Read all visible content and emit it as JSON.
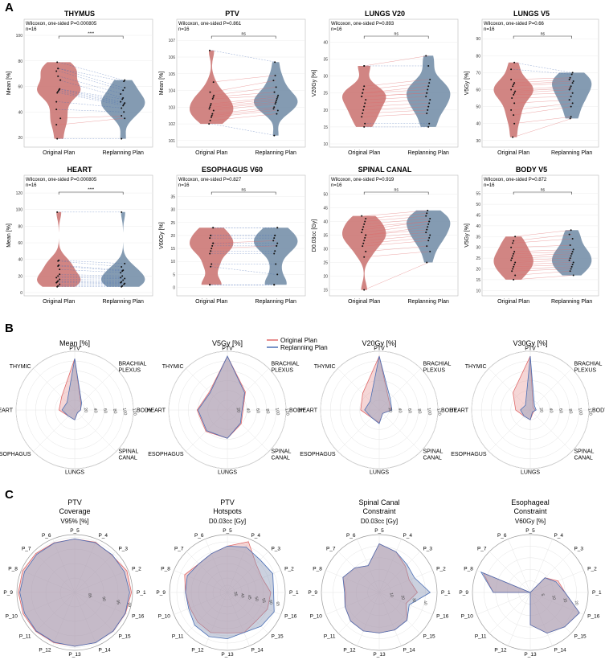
{
  "colors": {
    "original": "#c9706d",
    "replanning": "#6f8aa5",
    "orig_line": "#e06a6a",
    "rep_line": "#4a6fb5"
  },
  "panel_letters": [
    "A",
    "B",
    "C"
  ],
  "section_a": {
    "x_categories": [
      "Original Plan",
      "Replanning Plan"
    ],
    "panels": [
      {
        "title": "THYMUS",
        "stat": "Wilcoxon, one-sided P=0.000805",
        "n": "n=16",
        "sig": "****",
        "ylabel": "Mean [%]",
        "yticks": [
          "100",
          "80",
          "60",
          "40",
          "20"
        ]
      },
      {
        "title": "PTV",
        "stat": "Wilcoxon, one-sided P=0.861",
        "n": "n=16",
        "sig": "ns",
        "ylabel": "Mean [%]",
        "yticks": [
          "107",
          "106",
          "105",
          "104",
          "103",
          "102",
          "101"
        ]
      },
      {
        "title": "LUNGS V20",
        "stat": "Wilcoxon, one-sided P=0.893",
        "n": "n=16",
        "sig": "ns",
        "ylabel": "V20Gy [%]",
        "yticks": [
          "40",
          "35",
          "30",
          "25",
          "20",
          "15",
          "10"
        ]
      },
      {
        "title": "LUNGS V5",
        "stat": "Wilcoxon, one-sided P=0.66",
        "n": "n=16",
        "sig": "ns",
        "ylabel": "V5Gy [%]",
        "yticks": [
          "90",
          "80",
          "70",
          "60",
          "50",
          "40",
          "30"
        ]
      },
      {
        "title": "HEART",
        "stat": "Wilcoxon, one-sided P=0.000805",
        "n": "n=16",
        "sig": "****",
        "ylabel": "Mean [%]",
        "yticks": [
          "120",
          "100",
          "80",
          "60",
          "40",
          "20",
          "0"
        ]
      },
      {
        "title": "ESOPHAGUS V60",
        "stat": "Wilcoxon, one-sided P=0.827",
        "n": "n=16",
        "sig": "ns",
        "ylabel": "V60Gy [%]",
        "yticks": [
          "35",
          "30",
          "25",
          "20",
          "15",
          "10",
          "5",
          "0"
        ]
      },
      {
        "title": "SPINAL CANAL",
        "stat": "Wilcoxon, one-sided P=0.919",
        "n": "n=16",
        "sig": "ns",
        "ylabel": "D0.03cc [Gy]",
        "yticks": [
          "50",
          "45",
          "40",
          "35",
          "30",
          "25",
          "20",
          "15"
        ]
      },
      {
        "title": "BODY V5",
        "stat": "Wilcoxon, one-sided P=0.872",
        "n": "n=16",
        "sig": "ns",
        "ylabel": "V5Gy [%]",
        "yticks": [
          "55",
          "50",
          "45",
          "40",
          "35",
          "30",
          "25",
          "20",
          "15",
          "10"
        ]
      }
    ]
  },
  "section_b": {
    "legend": [
      "Original Plan",
      "Replanning Plan"
    ],
    "axes": [
      "PTV",
      "BRACHIAL PLEXUS",
      "BODY",
      "SPINAL CANAL",
      "LUNGS",
      "ESOPHAGUS",
      "HEART",
      "THYMIC"
    ],
    "ring_labels": [
      "20",
      "40",
      "60",
      "80",
      "100",
      "120"
    ],
    "ring_max": 120,
    "charts": [
      {
        "title": "Mean [%]",
        "original": [
          105,
          18,
          12,
          8,
          20,
          18,
          32,
          38
        ],
        "replanning": [
          105,
          20,
          12,
          8,
          20,
          18,
          26,
          22
        ]
      },
      {
        "title": "V5Gy [%]",
        "original": [
          110,
          52,
          32,
          40,
          58,
          62,
          62,
          52
        ],
        "replanning": [
          110,
          50,
          30,
          38,
          58,
          60,
          60,
          50
        ]
      },
      {
        "title": "V20Gy [%]",
        "original": [
          110,
          28,
          24,
          10,
          26,
          22,
          38,
          48
        ],
        "replanning": [
          110,
          32,
          26,
          10,
          28,
          22,
          30,
          26
        ]
      },
      {
        "title": "V30Gy [%]",
        "original": [
          110,
          8,
          10,
          8,
          20,
          18,
          30,
          50
        ],
        "replanning": [
          110,
          12,
          12,
          6,
          20,
          18,
          20,
          14
        ]
      }
    ]
  },
  "section_c": {
    "axes": [
      "P_5",
      "P_4",
      "P_3",
      "P_2",
      "P_1",
      "P_16",
      "P_15",
      "P_14",
      "P_13",
      "P_12",
      "P_11",
      "P_10",
      "P_9",
      "P_8",
      "P_7",
      "P_6"
    ],
    "charts": [
      {
        "title": [
          "PTV",
          "Coverage"
        ],
        "subtitle": "V95% [%]",
        "ring_labels": [
          "85",
          "90",
          "95",
          "99"
        ],
        "rmin": 80,
        "rmax": 100,
        "original": [
          98.5,
          98.8,
          98.2,
          99.5,
          99.6,
          99.0,
          98.9,
          98.8,
          98.6,
          98.8,
          99.0,
          99.3,
          99.5,
          99.5,
          99.0,
          98.6
        ],
        "replanning": [
          98.5,
          98.6,
          98.4,
          98.6,
          99.0,
          98.9,
          98.8,
          98.8,
          98.6,
          98.6,
          98.8,
          98.8,
          99.0,
          98.8,
          98.6,
          98.5
        ]
      },
      {
        "title": [
          "PTV",
          "Hotspots"
        ],
        "subtitle": "D0.03cc [Gy]",
        "ring_labels": [
          "35",
          "40",
          "45",
          "50",
          "55",
          "60",
          "65"
        ],
        "rmin": 30,
        "rmax": 70,
        "original": [
          62,
          68,
          58,
          56,
          60,
          60,
          58,
          60,
          58,
          60,
          59,
          58,
          59,
          62,
          58,
          59
        ],
        "replanning": [
          62,
          64,
          62,
          64,
          62,
          65,
          63,
          60,
          62,
          63,
          62,
          59,
          59,
          60,
          58,
          59
        ]
      },
      {
        "title": [
          "Spinal Canal",
          "Constraint"
        ],
        "subtitle": "D0.03cc [Gy]",
        "ring_labels": [
          "10",
          "20",
          "30",
          "40"
        ],
        "rmin": 0,
        "rmax": 50,
        "original": [
          42,
          38,
          32,
          28,
          33,
          25,
          34,
          35,
          35,
          36,
          35,
          32,
          29,
          34,
          30,
          25
        ],
        "replanning": [
          42,
          38,
          34,
          33,
          44,
          28,
          34,
          35,
          35,
          36,
          35,
          32,
          30,
          34,
          30,
          25
        ]
      },
      {
        "title": [
          "Esophageal",
          "Constraint"
        ],
        "subtitle": "V60Gy [%]",
        "ring_labels": [
          "5",
          "10",
          "15",
          "20"
        ],
        "rmin": 0,
        "rmax": 25,
        "original": [
          0,
          0,
          9,
          13,
          15,
          23,
          21,
          19,
          14,
          0,
          0,
          0,
          16,
          22,
          0,
          0
        ],
        "replanning": [
          0,
          0,
          9,
          12,
          15,
          23,
          21,
          19,
          14,
          0,
          0,
          0,
          16,
          23,
          0,
          0
        ]
      }
    ]
  },
  "chart_data": [
    {
      "type": "violin",
      "title": "THYMUS",
      "ylabel": "Mean [%]",
      "ylim": [
        15,
        100
      ],
      "categories": [
        "Original Plan",
        "Replanning Plan"
      ],
      "series": [
        {
          "name": "Original Plan",
          "values": [
            79,
            74,
            74,
            72,
            68,
            65,
            58,
            58,
            57,
            56,
            55,
            48,
            42,
            35,
            30,
            19
          ]
        },
        {
          "name": "Replanning Plan",
          "values": [
            65,
            64,
            59,
            57,
            54,
            51,
            50,
            48,
            47,
            46,
            45,
            43,
            40,
            37,
            35,
            19
          ]
        }
      ]
    },
    {
      "type": "violin",
      "title": "PTV",
      "ylabel": "Mean [%]",
      "ylim": [
        100.8,
        107.3
      ],
      "categories": [
        "Original Plan",
        "Replanning Plan"
      ],
      "series": [
        {
          "name": "Original Plan",
          "values": [
            106.4,
            104.5,
            103.9,
            103.7,
            103.6,
            103.5,
            103.2,
            103.1,
            103.0,
            102.9,
            102.8,
            102.6,
            102.5,
            102.4,
            102.2,
            102.0
          ]
        },
        {
          "name": "Replanning Plan",
          "values": [
            105.7,
            104.9,
            104.6,
            104.2,
            103.9,
            103.7,
            103.6,
            103.5,
            103.4,
            103.3,
            103.2,
            103.0,
            102.9,
            102.8,
            102.6,
            101.3
          ]
        }
      ]
    },
    {
      "type": "violin",
      "title": "LUNGS V20",
      "ylabel": "V20Gy [%]",
      "ylim": [
        10,
        42
      ],
      "categories": [
        "Original Plan",
        "Replanning Plan"
      ],
      "series": [
        {
          "name": "Original Plan",
          "values": [
            33,
            33,
            27,
            26,
            25,
            25,
            24,
            24,
            23,
            22,
            21,
            20,
            19,
            18,
            16,
            15
          ]
        },
        {
          "name": "Replanning Plan",
          "values": [
            36,
            33,
            29,
            28,
            27,
            26,
            25,
            25,
            24,
            23,
            22,
            21,
            20,
            19,
            16,
            15
          ]
        }
      ]
    },
    {
      "type": "violin",
      "title": "LUNGS V5",
      "ylabel": "V5Gy [%]",
      "ylim": [
        28,
        92
      ],
      "categories": [
        "Original Plan",
        "Replanning Plan"
      ],
      "series": [
        {
          "name": "Original Plan",
          "values": [
            76,
            72,
            66,
            64,
            63,
            62,
            60,
            59,
            58,
            57,
            55,
            52,
            48,
            45,
            40,
            32
          ]
        },
        {
          "name": "Replanning Plan",
          "values": [
            70,
            69,
            67,
            66,
            65,
            64,
            62,
            61,
            60,
            58,
            56,
            54,
            52,
            50,
            44,
            43
          ]
        }
      ]
    },
    {
      "type": "violin",
      "title": "HEART",
      "ylabel": "Mean [%]",
      "ylim": [
        0,
        122
      ],
      "categories": [
        "Original Plan",
        "Replanning Plan"
      ],
      "series": [
        {
          "name": "Original Plan",
          "values": [
            97,
            39,
            38,
            33,
            32,
            28,
            22,
            20,
            18,
            16,
            14,
            13,
            12,
            10,
            8,
            7
          ]
        },
        {
          "name": "Replanning Plan",
          "values": [
            97,
            35,
            31,
            27,
            26,
            24,
            20,
            18,
            17,
            15,
            13,
            12,
            11,
            10,
            8,
            7
          ]
        }
      ]
    },
    {
      "type": "violin",
      "title": "ESOPHAGUS V60",
      "ylabel": "V60Gy [%]",
      "ylim": [
        -2,
        37
      ],
      "categories": [
        "Original Plan",
        "Replanning Plan"
      ],
      "series": [
        {
          "name": "Original Plan",
          "values": [
            23,
            23,
            20,
            20,
            19,
            17,
            17,
            16,
            15,
            14,
            13,
            9,
            8,
            1,
            1,
            1
          ]
        },
        {
          "name": "Replanning Plan",
          "values": [
            23,
            23,
            20,
            20,
            19,
            18,
            17,
            16,
            16,
            14,
            13,
            9,
            5,
            1,
            1,
            1
          ]
        }
      ]
    },
    {
      "type": "violin",
      "title": "SPINAL CANAL",
      "ylabel": "D0.03cc [Gy]",
      "ylim": [
        14,
        51
      ],
      "categories": [
        "Original Plan",
        "Replanning Plan"
      ],
      "series": [
        {
          "name": "Original Plan",
          "values": [
            42,
            41,
            40,
            39,
            38,
            37,
            36,
            35,
            35,
            34,
            33,
            32,
            31,
            29,
            27,
            15
          ]
        },
        {
          "name": "Replanning Plan",
          "values": [
            44,
            43,
            42,
            41,
            40,
            40,
            39,
            38,
            37,
            36,
            35,
            34,
            33,
            31,
            29,
            25
          ]
        }
      ]
    },
    {
      "type": "violin",
      "title": "BODY V5",
      "ylabel": "V5Gy [%]",
      "ylim": [
        9,
        56
      ],
      "categories": [
        "Original Plan",
        "Replanning Plan"
      ],
      "series": [
        {
          "name": "Original Plan",
          "values": [
            35,
            33,
            32,
            30,
            28,
            27,
            26,
            25,
            24,
            23,
            22,
            21,
            20,
            19,
            17,
            15
          ]
        },
        {
          "name": "Replanning Plan",
          "values": [
            38,
            36,
            34,
            31,
            29,
            28,
            27,
            26,
            25,
            24,
            23,
            22,
            21,
            20,
            19,
            17
          ]
        }
      ]
    }
  ]
}
